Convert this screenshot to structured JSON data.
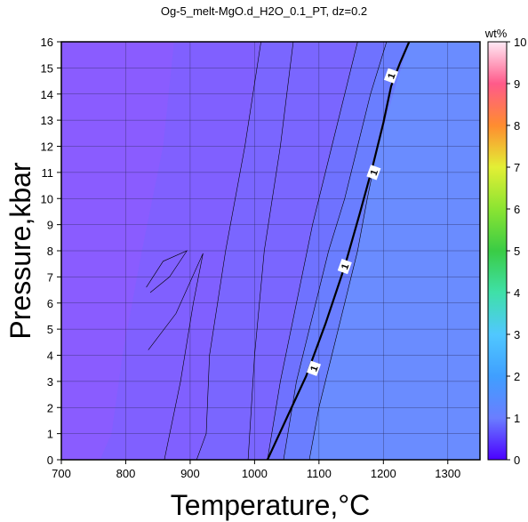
{
  "chart_data": {
    "type": "heatmap",
    "title": "Og-5_melt-MgO.d_H2O_0.1_PT, dz=0.2",
    "xlabel": "Temperature,°C",
    "ylabel": "Pressure,kbar",
    "xlim": [
      700,
      1350
    ],
    "ylim": [
      0,
      16
    ],
    "xticks": [
      700,
      800,
      900,
      1000,
      1100,
      1200,
      1300
    ],
    "yticks": [
      0,
      1,
      2,
      3,
      4,
      5,
      6,
      7,
      8,
      9,
      10,
      11,
      12,
      13,
      14,
      15,
      16
    ],
    "grid": true,
    "colorbar": {
      "label": "wt%",
      "range": [
        0,
        10
      ],
      "ticks": [
        0,
        1,
        2,
        3,
        4,
        5,
        6,
        7,
        8,
        9,
        10
      ]
    },
    "regions": [
      {
        "level": 0.2,
        "color": "#8a5cff",
        "boundary": [
          [
            700,
            16
          ],
          [
            875,
            16
          ],
          [
            858,
            12
          ],
          [
            825,
            8
          ],
          [
            795,
            4
          ],
          [
            778,
            1
          ],
          [
            760,
            0
          ],
          [
            700,
            0
          ]
        ]
      },
      {
        "level": 0.4,
        "color": "#8060ff",
        "boundary": [
          [
            875,
            16
          ],
          [
            1010,
            16
          ],
          [
            985,
            12
          ],
          [
            955,
            8
          ],
          [
            930,
            4
          ],
          [
            925,
            1
          ],
          [
            910,
            0
          ],
          [
            760,
            0
          ],
          [
            778,
            1
          ],
          [
            795,
            4
          ],
          [
            825,
            8
          ],
          [
            858,
            12
          ]
        ]
      },
      {
        "level": 0.6,
        "color": "#7a66ff",
        "boundary": [
          [
            1010,
            16
          ],
          [
            1160,
            16
          ],
          [
            1140,
            14
          ],
          [
            1120,
            12
          ],
          [
            1090,
            9
          ],
          [
            1065,
            6
          ],
          [
            1040,
            3
          ],
          [
            1020,
            0
          ],
          [
            910,
            0
          ],
          [
            925,
            1
          ],
          [
            930,
            4
          ],
          [
            955,
            8
          ],
          [
            985,
            12
          ]
        ]
      },
      {
        "level": 0.8,
        "color": "#6f72ff",
        "boundary": [
          [
            1160,
            16
          ],
          [
            1205,
            16
          ],
          [
            1180,
            14
          ],
          [
            1160,
            12
          ],
          [
            1140,
            10
          ],
          [
            1115,
            8
          ],
          [
            1095,
            6
          ],
          [
            1065,
            3
          ],
          [
            1045,
            0
          ],
          [
            1020,
            0
          ],
          [
            1040,
            3
          ],
          [
            1065,
            6
          ],
          [
            1090,
            9
          ],
          [
            1120,
            12
          ],
          [
            1140,
            14
          ]
        ]
      },
      {
        "level": 1.0,
        "color": "#6a7eff",
        "boundary": [
          [
            1205,
            16
          ],
          [
            1240,
            16
          ],
          [
            1215,
            14
          ],
          [
            1192,
            12
          ],
          [
            1175,
            10
          ],
          [
            1160,
            8
          ],
          [
            1140,
            6
          ],
          [
            1120,
            4
          ],
          [
            1100,
            2
          ],
          [
            1085,
            0
          ],
          [
            1045,
            0
          ],
          [
            1065,
            3
          ],
          [
            1095,
            6
          ],
          [
            1115,
            8
          ],
          [
            1140,
            10
          ],
          [
            1160,
            12
          ],
          [
            1180,
            14
          ]
        ]
      },
      {
        "level": 1.2,
        "color": "#6a8cff",
        "boundary": [
          [
            1240,
            16
          ],
          [
            1350,
            16
          ],
          [
            1350,
            0
          ],
          [
            1085,
            0
          ],
          [
            1100,
            2
          ],
          [
            1120,
            4
          ],
          [
            1140,
            6
          ],
          [
            1160,
            8
          ],
          [
            1175,
            10
          ],
          [
            1192,
            12
          ],
          [
            1215,
            14
          ]
        ]
      }
    ],
    "contours": [
      {
        "level": 1,
        "labeled": true,
        "labels": [
          [
            1092,
            3.5
          ],
          [
            1140,
            7.4
          ],
          [
            1185,
            11
          ],
          [
            1212,
            14.7
          ]
        ],
        "points": [
          [
            1020,
            0
          ],
          [
            1050,
            1.6
          ],
          [
            1080,
            3.2
          ],
          [
            1110,
            5.2
          ],
          [
            1140,
            7.4
          ],
          [
            1163,
            9.4
          ],
          [
            1183,
            11.2
          ],
          [
            1200,
            12.9
          ],
          [
            1212,
            14.3
          ],
          [
            1226,
            15.2
          ],
          [
            1240,
            16
          ]
        ]
      },
      {
        "level": 0.8,
        "labeled": false,
        "points": [
          [
            1045,
            0
          ],
          [
            1065,
            3
          ],
          [
            1095,
            6
          ],
          [
            1115,
            8
          ],
          [
            1140,
            10
          ],
          [
            1160,
            12
          ],
          [
            1180,
            14
          ],
          [
            1205,
            16
          ]
        ]
      },
      {
        "level": 0.6,
        "labeled": false,
        "points": [
          [
            1020,
            0
          ],
          [
            1040,
            3
          ],
          [
            1065,
            6
          ],
          [
            1090,
            9
          ],
          [
            1120,
            12
          ],
          [
            1140,
            14
          ],
          [
            1160,
            16
          ]
        ]
      },
      {
        "level": 1.1,
        "labeled": false,
        "points": [
          [
            1085,
            0
          ],
          [
            1100,
            2
          ],
          [
            1120,
            4
          ],
          [
            1140,
            6
          ],
          [
            1160,
            8
          ],
          [
            1175,
            10
          ],
          [
            1185,
            11.2
          ]
        ]
      },
      {
        "level": 0.4,
        "labeled": false,
        "points": [
          [
            910,
            0
          ],
          [
            925,
            1
          ],
          [
            930,
            4
          ],
          [
            955,
            8
          ],
          [
            985,
            12
          ],
          [
            1010,
            16
          ]
        ]
      },
      {
        "level": 0.3,
        "labeled": false,
        "points": [
          [
            860,
            0
          ],
          [
            885,
            3
          ],
          [
            905,
            6
          ],
          [
            920,
            7.9
          ],
          [
            878,
            5.6
          ],
          [
            835,
            4.2
          ]
        ]
      },
      {
        "level": 0.25,
        "labeled": false,
        "points": [
          [
            832,
            6.6
          ],
          [
            858,
            7.6
          ],
          [
            895,
            8.0
          ],
          [
            868,
            7.0
          ],
          [
            838,
            6.4
          ]
        ]
      },
      {
        "level": 0.5,
        "labeled": false,
        "points": [
          [
            990,
            0
          ],
          [
            1000,
            4
          ],
          [
            1015,
            8
          ],
          [
            1040,
            12
          ],
          [
            1060,
            16
          ]
        ]
      }
    ]
  }
}
